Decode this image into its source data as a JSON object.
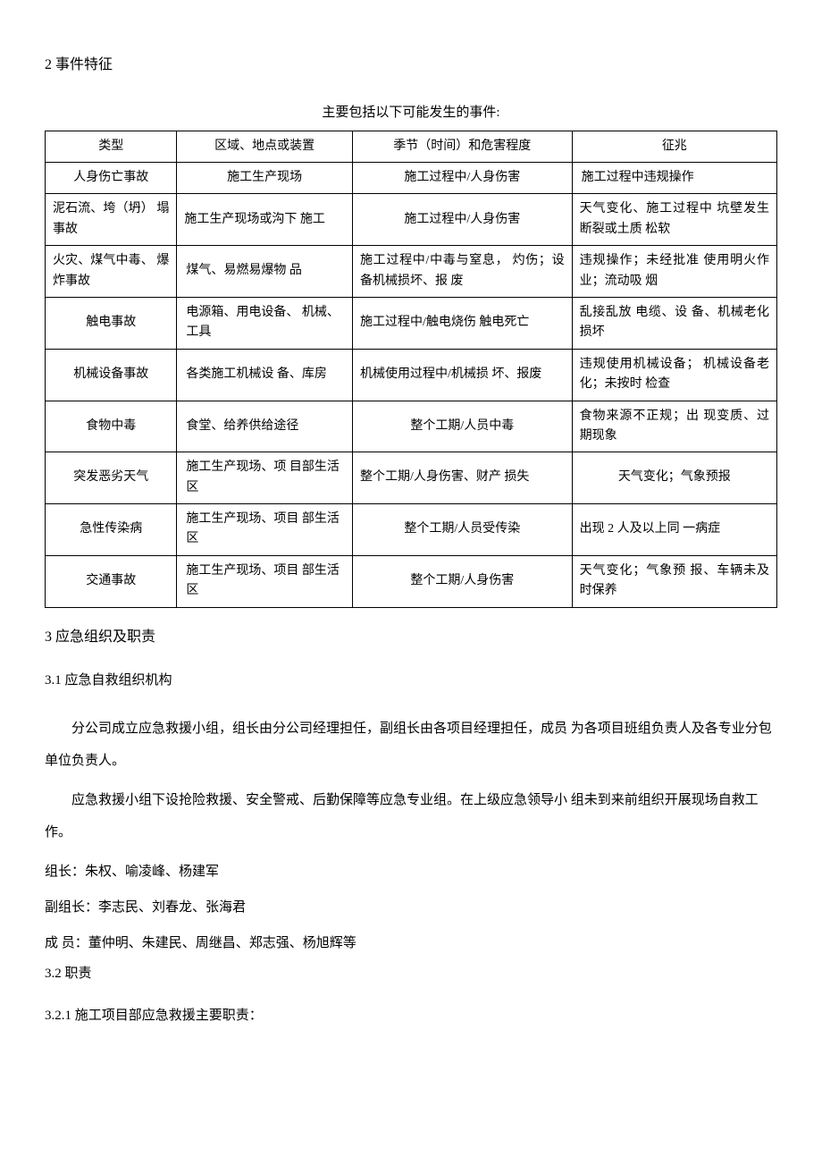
{
  "section2": {
    "heading": "2 事件特征",
    "tableCaption": "主要包括以下可能发生的事件:",
    "table": {
      "headers": {
        "type": "类型",
        "area": "区域、地点或装置",
        "season": "季节（时间）和危害程度",
        "sign": "征兆"
      },
      "rows": [
        {
          "type": "人身伤亡事故",
          "area": "施工生产现场",
          "season": "施工过程中/人身伤害",
          "sign": "施工过程中违规操作"
        },
        {
          "type": "泥石流、垮（坍） 塌事故",
          "area": "施工生产现场或沟下 施工",
          "season": "施工过程中/人身伤害",
          "sign": "天气变化、施工过程中 坑壁发生断裂或土质 松软"
        },
        {
          "type": "火灾、煤气中毒、 爆炸事故",
          "area": "煤气、易燃易爆物 品",
          "season": "施工过程中/中毒与窒息， 灼伤；设备机械损坏、报 废",
          "sign": "违规操作；未经批准 使用明火作业；流动吸 烟"
        },
        {
          "type": "触电事故",
          "area": "电源箱、用电设备、 机械、工具",
          "season": "施工过程中/触电烧伤  触电死亡",
          "sign": "乱接乱放 电缆、设 备、机械老化损坏"
        },
        {
          "type": "机械设备事故",
          "area": "各类施工机械设 备、库房",
          "season": "机械使用过程中/机械损 坏、报废",
          "sign": "违规使用机械设备； 机械设备老化；未按时 检查"
        },
        {
          "type": "食物中毒",
          "area": "食堂、给养供给途径",
          "season": "整个工期/人员中毒",
          "sign": "食物来源不正规；出 现变质、过期现象"
        },
        {
          "type": "突发恶劣天气",
          "area": "施工生产现场、项 目部生活区",
          "season": "整个工期/人身伤害、财产 损失",
          "sign": "天气变化；气象预报"
        },
        {
          "type": "急性传染病",
          "area": "施工生产现场、项目 部生活区",
          "season": "整个工期/人员受传染",
          "sign": "出现 2 人及以上同 一病症"
        },
        {
          "type": "交通事故",
          "area": "施工生产现场、项目 部生活区",
          "season": "整个工期/人身伤害",
          "sign": "天气变化；气象预 报、车辆未及时保养"
        }
      ]
    }
  },
  "section3": {
    "heading": "3 应急组织及职责",
    "sub31": {
      "heading": "3.1 应急自救组织机构",
      "para1": "分公司成立应急救援小组，组长由分公司经理担任，副组长由各项目经理担任，成员 为各项目班组负责人及各专业分包单位负责人。",
      "para2": "应急救援小组下设抢险救援、安全警戒、后勤保障等应急专业组。在上级应急领导小 组未到来前组织开展现场自救工作。",
      "leader": "组长：朱权、喻凌峰、杨建军",
      "viceLeader": "副组长：李志民、刘春龙、张海君",
      "members": "成 员：董仲明、朱建民、周继昌、郑志强、杨旭辉等"
    },
    "sub32": {
      "heading": "3.2 职责",
      "item321": "3.2.1 施工项目部应急救援主要职责："
    }
  }
}
